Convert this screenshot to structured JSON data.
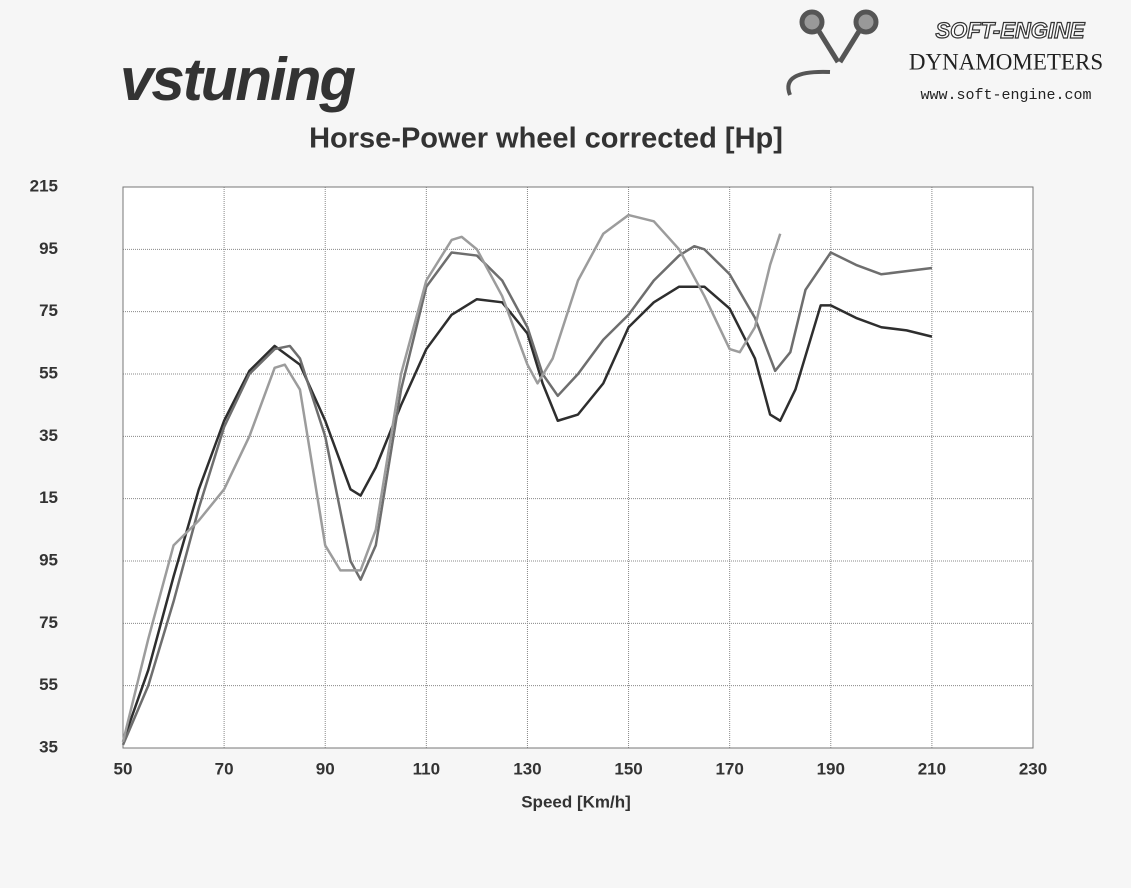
{
  "header": {
    "brand": "vstuning",
    "logo_text": "SOFT-ENGINE",
    "company": "DYNAMOMETERS",
    "url": "www.soft-engine.com"
  },
  "chart_data": {
    "type": "line",
    "title": "Horse-Power wheel corrected [Hp]",
    "x_label": "Speed [Km/h]",
    "xlim": [
      50,
      230
    ],
    "xticks": [
      50,
      70,
      90,
      110,
      130,
      150,
      170,
      190,
      210,
      230
    ],
    "ylim": [
      35,
      215
    ],
    "yticks": [
      35,
      55,
      75,
      95,
      {
        "value": 115,
        "label": "15"
      },
      {
        "value": 135,
        "label": "35"
      },
      {
        "value": 155,
        "label": "55"
      },
      {
        "value": 175,
        "label": "75"
      },
      {
        "value": 195,
        "label": "95"
      },
      215
    ],
    "grid": true,
    "series": [
      {
        "color": "#2e2e2e",
        "x": [
          50,
          55,
          60,
          65,
          70,
          75,
          80,
          85,
          90,
          95,
          97,
          100,
          105,
          110,
          115,
          120,
          125,
          130,
          133,
          136,
          140,
          145,
          150,
          155,
          160,
          165,
          170,
          175,
          178,
          180,
          183,
          188,
          190,
          195,
          200,
          205,
          210
        ],
        "values": [
          37,
          60,
          90,
          118,
          140,
          156,
          164,
          158,
          140,
          118,
          116,
          125,
          145,
          163,
          174,
          179,
          178,
          168,
          152,
          140,
          142,
          152,
          170,
          178,
          183,
          183,
          176,
          160,
          142,
          140,
          150,
          177,
          177,
          173,
          170,
          169,
          167
        ]
      },
      {
        "color": "#6e6e6e",
        "x": [
          50,
          55,
          60,
          65,
          70,
          75,
          80,
          83,
          85,
          90,
          95,
          97,
          100,
          105,
          110,
          115,
          120,
          125,
          130,
          133,
          136,
          140,
          145,
          150,
          155,
          160,
          163,
          165,
          170,
          175,
          179,
          182,
          185,
          190,
          195,
          200,
          205,
          210
        ],
        "values": [
          36,
          55,
          82,
          112,
          138,
          155,
          163,
          164,
          160,
          135,
          95,
          89,
          100,
          150,
          183,
          194,
          193,
          185,
          170,
          155,
          148,
          155,
          166,
          174,
          185,
          193,
          196,
          195,
          187,
          173,
          156,
          162,
          182,
          194,
          190,
          187,
          188,
          189
        ]
      },
      {
        "color": "#9c9c9c",
        "x": [
          50,
          55,
          60,
          65,
          70,
          75,
          80,
          82,
          85,
          88,
          90,
          93,
          97,
          100,
          105,
          110,
          115,
          117,
          120,
          125,
          130,
          132,
          135,
          140,
          145,
          150,
          155,
          160,
          165,
          170,
          172,
          175,
          178,
          180
        ],
        "values": [
          37,
          70,
          100,
          108,
          118,
          135,
          157,
          158,
          150,
          120,
          100,
          92,
          92,
          105,
          155,
          185,
          198,
          199,
          195,
          180,
          158,
          152,
          160,
          185,
          200,
          206,
          204,
          195,
          180,
          163,
          162,
          170,
          190,
          200
        ]
      }
    ]
  }
}
